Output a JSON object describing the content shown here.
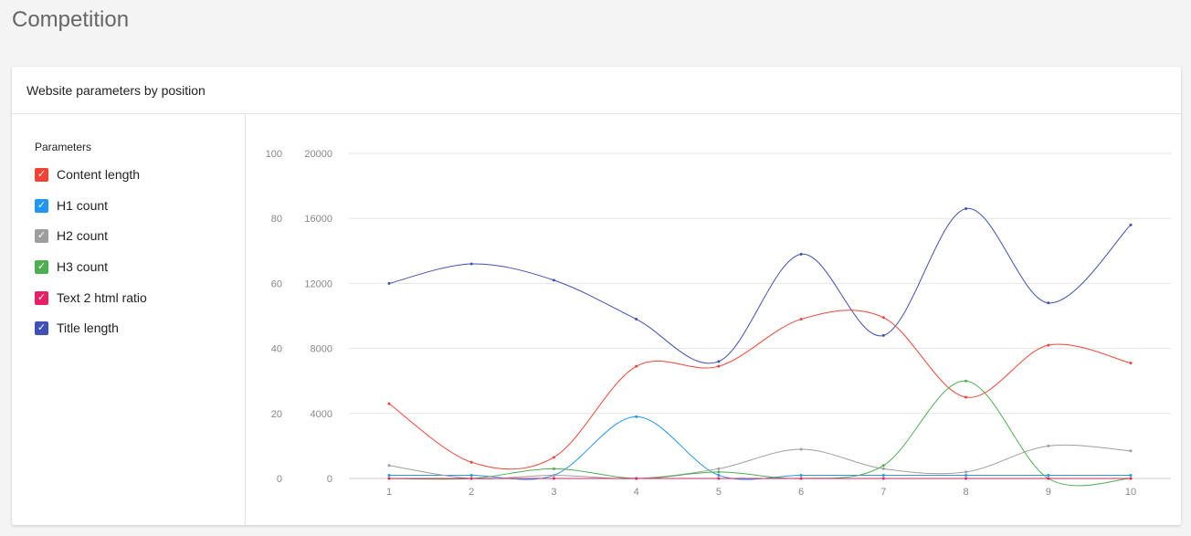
{
  "page": {
    "title": "Competition"
  },
  "card": {
    "title": "Website parameters by position"
  },
  "sidebar": {
    "title": "Parameters",
    "items": [
      {
        "label": "Content length",
        "color": "#f44336",
        "checked": true
      },
      {
        "label": "H1 count",
        "color": "#2196f3",
        "checked": true
      },
      {
        "label": "H2 count",
        "color": "#9e9e9e",
        "checked": true
      },
      {
        "label": "H3 count",
        "color": "#4caf50",
        "checked": true
      },
      {
        "label": "Text 2 html ratio",
        "color": "#e91e63",
        "checked": true
      },
      {
        "label": "Title length",
        "color": "#3f51b5",
        "checked": true
      }
    ]
  },
  "chart_data": {
    "type": "line",
    "x": [
      1,
      2,
      3,
      4,
      5,
      6,
      7,
      8,
      9,
      10
    ],
    "y_left": {
      "ticks": [
        0,
        20,
        40,
        60,
        80,
        100
      ],
      "range": [
        0,
        100
      ]
    },
    "y_right": {
      "ticks": [
        0,
        4000,
        8000,
        12000,
        16000,
        20000
      ],
      "range": [
        0,
        20000
      ]
    },
    "grid": true,
    "legend": "left-sidebar",
    "series": [
      {
        "name": "Title length",
        "axis": "left",
        "color": "#3f51b5",
        "values": [
          60,
          66,
          61,
          49,
          36,
          69,
          44,
          83,
          54,
          78
        ]
      },
      {
        "name": "Content length",
        "axis": "right",
        "color": "#f44336",
        "values": [
          4600,
          1000,
          1300,
          6900,
          6900,
          9800,
          9900,
          5000,
          8200,
          7100
        ]
      },
      {
        "name": "H1 count",
        "axis": "left",
        "color": "#2196f3",
        "values": [
          1,
          1,
          1,
          19,
          1,
          1,
          1,
          1,
          1,
          1
        ]
      },
      {
        "name": "H2 count",
        "axis": "left",
        "color": "#9e9e9e",
        "values": [
          4,
          0,
          1,
          0,
          3,
          9,
          3,
          2,
          10,
          8.5
        ]
      },
      {
        "name": "H3 count",
        "axis": "left",
        "color": "#4caf50",
        "values": [
          0,
          0,
          3,
          0,
          2,
          0,
          4,
          30,
          0,
          0
        ]
      },
      {
        "name": "Text 2 html ratio",
        "axis": "left",
        "color": "#e91e63",
        "values": [
          0,
          0,
          0,
          0,
          0,
          0,
          0,
          0,
          0,
          0
        ]
      }
    ]
  }
}
